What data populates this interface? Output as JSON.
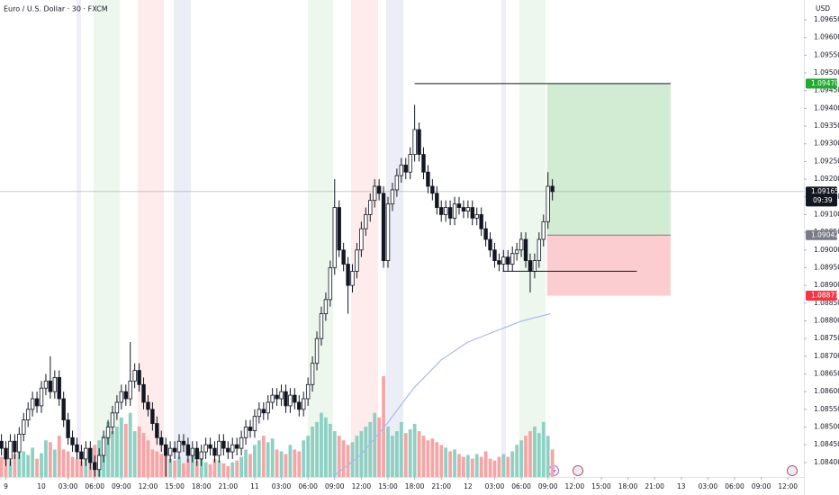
{
  "chart_data": {
    "type": "candlestick",
    "title": "Euro / U.S. Dollar · 30 · FXCM",
    "currency": "USD",
    "up_color": "#ffffff",
    "down_color": "#131722",
    "volume_up_color": "#8fd0c4",
    "volume_down_color": "#f5a5a6",
    "ma_color": "#a9b8f5",
    "xlim": [
      -4.66,
      85.8
    ],
    "ylim": [
      1.08359,
      1.09706
    ],
    "yticks": [
      {
        "value": 1.084,
        "label": "1.08400"
      },
      {
        "value": 1.0845,
        "label": "1.08450"
      },
      {
        "value": 1.085,
        "label": "1.08500"
      },
      {
        "value": 1.0855,
        "label": "1.08550"
      },
      {
        "value": 1.086,
        "label": "1.08600"
      },
      {
        "value": 1.0865,
        "label": "1.08650"
      },
      {
        "value": 1.087,
        "label": "1.08700"
      },
      {
        "value": 1.0875,
        "label": "1.08750"
      },
      {
        "value": 1.088,
        "label": "1.08800"
      },
      {
        "value": 1.0885,
        "label": "1.08850"
      },
      {
        "value": 1.089,
        "label": "1.08900"
      },
      {
        "value": 1.0895,
        "label": "1.08950"
      },
      {
        "value": 1.09,
        "label": "1.09000"
      },
      {
        "value": 1.0905,
        "label": "1.09050"
      },
      {
        "value": 1.091,
        "label": "1.09100"
      },
      {
        "value": 1.0915,
        "label": "1.09150"
      },
      {
        "value": 1.092,
        "label": "1.09200"
      },
      {
        "value": 1.0925,
        "label": "1.09250"
      },
      {
        "value": 1.093,
        "label": "1.09300"
      },
      {
        "value": 1.0935,
        "label": "1.09350"
      },
      {
        "value": 1.094,
        "label": "1.09400"
      },
      {
        "value": 1.0945,
        "label": "1.09450"
      },
      {
        "value": 1.095,
        "label": "1.09500"
      },
      {
        "value": 1.0955,
        "label": "1.09550"
      },
      {
        "value": 1.096,
        "label": "1.09600"
      },
      {
        "value": 1.0965,
        "label": "1.09650"
      }
    ],
    "xticks": [
      {
        "value": -4,
        "label": "9"
      },
      {
        "value": 0,
        "label": "10"
      },
      {
        "value": 3,
        "label": "03:00"
      },
      {
        "value": 6,
        "label": "06:00"
      },
      {
        "value": 9,
        "label": "09:00"
      },
      {
        "value": 12,
        "label": "12:00"
      },
      {
        "value": 15,
        "label": "15:00"
      },
      {
        "value": 18,
        "label": "18:00"
      },
      {
        "value": 21,
        "label": "21:00"
      },
      {
        "value": 24,
        "label": "11"
      },
      {
        "value": 27,
        "label": "03:00"
      },
      {
        "value": 30,
        "label": "06:00"
      },
      {
        "value": 33,
        "label": "09:00"
      },
      {
        "value": 36,
        "label": "12:00"
      },
      {
        "value": 39,
        "label": "15:00"
      },
      {
        "value": 42,
        "label": "18:00"
      },
      {
        "value": 45,
        "label": "21:00"
      },
      {
        "value": 48,
        "label": "12"
      },
      {
        "value": 51,
        "label": "03:00"
      },
      {
        "value": 54,
        "label": "06:00"
      },
      {
        "value": 57,
        "label": "09:00"
      },
      {
        "value": 60,
        "label": "12:00"
      },
      {
        "value": 63,
        "label": "15:00"
      },
      {
        "value": 66,
        "label": "18:00"
      },
      {
        "value": 69,
        "label": "21:00"
      },
      {
        "value": 72,
        "label": "13"
      },
      {
        "value": 75,
        "label": "03:00"
      },
      {
        "value": 78,
        "label": "06:00"
      },
      {
        "value": 81,
        "label": "09:00"
      },
      {
        "value": 84,
        "label": "12:00"
      }
    ],
    "x": [
      -4.5,
      -4,
      -3.5,
      -3,
      -2.5,
      -2,
      -1.5,
      -1,
      -0.5,
      0,
      0.5,
      1,
      1.5,
      2,
      2.5,
      3,
      3.5,
      4,
      4.5,
      5,
      5.5,
      6,
      6.5,
      7,
      7.5,
      8,
      8.5,
      9,
      9.5,
      10,
      10.5,
      11,
      11.5,
      12,
      12.5,
      13,
      13.5,
      14,
      14.5,
      15,
      15.5,
      16,
      16.5,
      17,
      17.5,
      18,
      18.5,
      19,
      19.5,
      20,
      20.5,
      21,
      21.5,
      22,
      22.5,
      23,
      23.5,
      24,
      24.5,
      25,
      25.5,
      26,
      26.5,
      27,
      27.5,
      28,
      28.5,
      29,
      29.5,
      30,
      30.5,
      31,
      31.5,
      32,
      32.5,
      33,
      33.5,
      34,
      34.5,
      35,
      35.5,
      36,
      36.5,
      37,
      37.5,
      38,
      38.5,
      39,
      39.5,
      40,
      40.5,
      41,
      41.5,
      42,
      42.5,
      43,
      43.5,
      44,
      44.5,
      45,
      45.5,
      46,
      46.5,
      47,
      47.5,
      48,
      48.5,
      49,
      49.5,
      50,
      50.5,
      51,
      51.5,
      52,
      52.5,
      53,
      53.5,
      54,
      54.5,
      55,
      55.5,
      56,
      56.5,
      57,
      57.5
    ],
    "ohlc": [
      [
        1.0846,
        1.0848,
        1.0842,
        1.0844
      ],
      [
        1.0844,
        1.0846,
        1.0839,
        1.0841
      ],
      [
        1.0841,
        1.0848,
        1.0839,
        1.0846
      ],
      [
        1.0846,
        1.0848,
        1.0841,
        1.0843
      ],
      [
        1.0843,
        1.085,
        1.0841,
        1.0848
      ],
      [
        1.0848,
        1.0854,
        1.0846,
        1.0852
      ],
      [
        1.0852,
        1.0857,
        1.085,
        1.0855
      ],
      [
        1.0855,
        1.086,
        1.0853,
        1.0858
      ],
      [
        1.0858,
        1.086,
        1.0854,
        1.0856
      ],
      [
        1.0856,
        1.0863,
        1.0854,
        1.0861
      ],
      [
        1.0861,
        1.0865,
        1.0859,
        1.0863
      ],
      [
        1.0863,
        1.087,
        1.0858,
        1.086
      ],
      [
        1.086,
        1.0866,
        1.0858,
        1.0864
      ],
      [
        1.0864,
        1.0866,
        1.0856,
        1.0858
      ],
      [
        1.0858,
        1.086,
        1.085,
        1.0852
      ],
      [
        1.0852,
        1.0854,
        1.0845,
        1.0847
      ],
      [
        1.0847,
        1.0849,
        1.0843,
        1.0845
      ],
      [
        1.0845,
        1.0847,
        1.0841,
        1.0843
      ],
      [
        1.0843,
        1.0845,
        1.0839,
        1.0841
      ],
      [
        1.0841,
        1.0846,
        1.0839,
        1.0844
      ],
      [
        1.0844,
        1.0846,
        1.0838,
        1.084
      ],
      [
        1.084,
        1.0842,
        1.0836,
        1.0838
      ],
      [
        1.0838,
        1.0844,
        1.0836,
        1.0842
      ],
      [
        1.0842,
        1.0849,
        1.084,
        1.0847
      ],
      [
        1.0847,
        1.0852,
        1.0845,
        1.085
      ],
      [
        1.085,
        1.0856,
        1.0848,
        1.0854
      ],
      [
        1.0854,
        1.0859,
        1.0852,
        1.0857
      ],
      [
        1.0857,
        1.0862,
        1.0855,
        1.086
      ],
      [
        1.086,
        1.0862,
        1.0856,
        1.0858
      ],
      [
        1.0858,
        1.0874,
        1.0856,
        1.0863
      ],
      [
        1.0863,
        1.0868,
        1.0861,
        1.0866
      ],
      [
        1.0866,
        1.0868,
        1.086,
        1.0862
      ],
      [
        1.0862,
        1.0864,
        1.0855,
        1.0857
      ],
      [
        1.0857,
        1.0859,
        1.0853,
        1.0855
      ],
      [
        1.0855,
        1.0857,
        1.0849,
        1.0851
      ],
      [
        1.0851,
        1.0853,
        1.0845,
        1.0847
      ],
      [
        1.0847,
        1.0849,
        1.0843,
        1.0845
      ],
      [
        1.0845,
        1.0847,
        1.0836,
        1.0842
      ],
      [
        1.0842,
        1.0846,
        1.084,
        1.0844
      ],
      [
        1.0844,
        1.0846,
        1.0841,
        1.0843
      ],
      [
        1.0843,
        1.0848,
        1.0841,
        1.0846
      ],
      [
        1.0846,
        1.0848,
        1.0843,
        1.0845
      ],
      [
        1.0845,
        1.0847,
        1.084,
        1.0842
      ],
      [
        1.0842,
        1.0846,
        1.084,
        1.0844
      ],
      [
        1.0844,
        1.0846,
        1.0839,
        1.0841
      ],
      [
        1.0841,
        1.0845,
        1.0839,
        1.0843
      ],
      [
        1.0843,
        1.0847,
        1.0841,
        1.0845
      ],
      [
        1.0845,
        1.0847,
        1.0842,
        1.0844
      ],
      [
        1.0844,
        1.0846,
        1.084,
        1.0842
      ],
      [
        1.0842,
        1.0848,
        1.084,
        1.0846
      ],
      [
        1.0846,
        1.0848,
        1.0842,
        1.0844
      ],
      [
        1.0844,
        1.0846,
        1.0841,
        1.0843
      ],
      [
        1.0843,
        1.0847,
        1.0841,
        1.0845
      ],
      [
        1.0845,
        1.0847,
        1.0842,
        1.0844
      ],
      [
        1.0844,
        1.0849,
        1.0842,
        1.0847
      ],
      [
        1.0847,
        1.0852,
        1.0845,
        1.085
      ],
      [
        1.085,
        1.0852,
        1.0847,
        1.0849
      ],
      [
        1.0849,
        1.0855,
        1.0847,
        1.0853
      ],
      [
        1.0853,
        1.0857,
        1.0851,
        1.0855
      ],
      [
        1.0855,
        1.0857,
        1.0852,
        1.0854
      ],
      [
        1.0854,
        1.0859,
        1.0852,
        1.0857
      ],
      [
        1.0857,
        1.0861,
        1.0855,
        1.0859
      ],
      [
        1.0859,
        1.0861,
        1.0856,
        1.0858
      ],
      [
        1.0858,
        1.0862,
        1.0856,
        1.086
      ],
      [
        1.086,
        1.0862,
        1.0854,
        1.0856
      ],
      [
        1.0856,
        1.0861,
        1.0854,
        1.0859
      ],
      [
        1.0859,
        1.0861,
        1.0855,
        1.0857
      ],
      [
        1.0857,
        1.0859,
        1.0853,
        1.0855
      ],
      [
        1.0855,
        1.086,
        1.0853,
        1.0858
      ],
      [
        1.0858,
        1.0864,
        1.0856,
        1.0862
      ],
      [
        1.0862,
        1.087,
        1.086,
        1.0868
      ],
      [
        1.0868,
        1.0877,
        1.0866,
        1.0875
      ],
      [
        1.0875,
        1.0884,
        1.0873,
        1.0882
      ],
      [
        1.0882,
        1.0888,
        1.088,
        1.0886
      ],
      [
        1.0886,
        1.0897,
        1.0884,
        1.0895
      ],
      [
        1.0895,
        1.092,
        1.0893,
        1.0912
      ],
      [
        1.0912,
        1.0914,
        1.0898,
        1.09
      ],
      [
        1.09,
        1.0902,
        1.0894,
        1.0896
      ],
      [
        1.0896,
        1.0898,
        1.0882,
        1.089
      ],
      [
        1.089,
        1.0896,
        1.0888,
        1.0894
      ],
      [
        1.0894,
        1.0902,
        1.0892,
        1.09
      ],
      [
        1.09,
        1.0908,
        1.0898,
        1.0906
      ],
      [
        1.0906,
        1.0912,
        1.0904,
        1.091
      ],
      [
        1.091,
        1.0916,
        1.0908,
        1.0914
      ],
      [
        1.0914,
        1.092,
        1.0912,
        1.0918
      ],
      [
        1.0918,
        1.092,
        1.0914,
        1.0916
      ],
      [
        1.0916,
        1.0918,
        1.0895,
        1.0897
      ],
      [
        1.0897,
        1.0915,
        1.0895,
        1.0913
      ],
      [
        1.0913,
        1.0919,
        1.0911,
        1.0917
      ],
      [
        1.0917,
        1.0923,
        1.0915,
        1.0921
      ],
      [
        1.0921,
        1.0926,
        1.0919,
        1.0924
      ],
      [
        1.0924,
        1.0926,
        1.092,
        1.0922
      ],
      [
        1.0922,
        1.0929,
        1.092,
        1.0927
      ],
      [
        1.0927,
        1.0941,
        1.0925,
        1.0934
      ],
      [
        1.0934,
        1.0936,
        1.0925,
        1.0927
      ],
      [
        1.0927,
        1.0929,
        1.092,
        1.0922
      ],
      [
        1.0922,
        1.0924,
        1.0916,
        1.0918
      ],
      [
        1.0918,
        1.092,
        1.0914,
        1.0916
      ],
      [
        1.0916,
        1.0918,
        1.091,
        1.0912
      ],
      [
        1.0912,
        1.0914,
        1.0908,
        1.091
      ],
      [
        1.091,
        1.0914,
        1.0908,
        1.0912
      ],
      [
        1.0912,
        1.0914,
        1.0907,
        1.0909
      ],
      [
        1.0909,
        1.0915,
        1.0907,
        1.0913
      ],
      [
        1.0913,
        1.0915,
        1.091,
        1.0912
      ],
      [
        1.0912,
        1.0914,
        1.0909,
        1.0911
      ],
      [
        1.0911,
        1.0914,
        1.0909,
        1.0912
      ],
      [
        1.0912,
        1.0914,
        1.0907,
        1.0909
      ],
      [
        1.0909,
        1.0912,
        1.0907,
        1.091
      ],
      [
        1.091,
        1.0912,
        1.0904,
        1.0906
      ],
      [
        1.0906,
        1.0908,
        1.0901,
        1.0903
      ],
      [
        1.0903,
        1.0905,
        1.0898,
        1.09
      ],
      [
        1.09,
        1.0902,
        1.0895,
        1.0897
      ],
      [
        1.0897,
        1.0899,
        1.0894,
        1.0896
      ],
      [
        1.0896,
        1.09,
        1.0894,
        1.0898
      ],
      [
        1.0898,
        1.09,
        1.0894,
        1.0896
      ],
      [
        1.0896,
        1.0901,
        1.0894,
        1.0899
      ],
      [
        1.0899,
        1.0902,
        1.0897,
        1.09
      ],
      [
        1.09,
        1.0905,
        1.0898,
        1.0903
      ],
      [
        1.0903,
        1.0905,
        1.0895,
        1.0897
      ],
      [
        1.0897,
        1.0899,
        1.0888,
        1.0894
      ],
      [
        1.0894,
        1.0899,
        1.0892,
        1.0897
      ],
      [
        1.0897,
        1.0905,
        1.0895,
        1.0903
      ],
      [
        1.0903,
        1.091,
        1.0901,
        1.0908
      ],
      [
        1.0908,
        1.0922,
        1.0906,
        1.0918
      ],
      [
        1.0918,
        1.092,
        1.0914,
        1.09165
      ]
    ],
    "volume": [
      22,
      30,
      18,
      25,
      35,
      28,
      24,
      32,
      20,
      26,
      40,
      38,
      30,
      45,
      30,
      28,
      22,
      20,
      18,
      25,
      30,
      35,
      40,
      45,
      60,
      50,
      55,
      65,
      58,
      70,
      50,
      55,
      48,
      40,
      30,
      28,
      25,
      35,
      20,
      18,
      22,
      15,
      20,
      25,
      18,
      22,
      16,
      14,
      20,
      18,
      15,
      12,
      16,
      18,
      22,
      30,
      25,
      35,
      40,
      45,
      38,
      42,
      30,
      28,
      25,
      35,
      30,
      28,
      40,
      45,
      55,
      60,
      70,
      65,
      58,
      50,
      45,
      40,
      35,
      38,
      45,
      50,
      55,
      60,
      70,
      65,
      110,
      55,
      45,
      50,
      60,
      48,
      52,
      58,
      50,
      45,
      40,
      42,
      38,
      35,
      32,
      28,
      30,
      25,
      22,
      24,
      20,
      25,
      22,
      28,
      20,
      18,
      22,
      25,
      22,
      28,
      35,
      40,
      45,
      50,
      55,
      48,
      60,
      45,
      30
    ],
    "ma": {
      "x": [
        32.8,
        35.9,
        38.9,
        41.9,
        45,
        48,
        51,
        54.1,
        57.3
      ],
      "values": [
        1.0836,
        1.0842,
        1.0851,
        1.0861,
        1.0869,
        1.0874,
        1.0877,
        1.088,
        1.0882
      ]
    },
    "lines": [
      {
        "value": 1.0947,
        "x": [
          42,
          70.8
        ]
      },
      {
        "value": 1.0894,
        "x": [
          51.9,
          67
        ]
      }
    ],
    "position_x": [
      56.9,
      70.8
    ],
    "price_labels": [
      {
        "value": 1.0947,
        "label": "1.09470",
        "color": "#22ab2e"
      },
      {
        "value": 1.09165,
        "sub": "09:39",
        "color": "#131722"
      },
      {
        "value": 1.09042,
        "color": "#787b86"
      },
      {
        "value": 1.08871,
        "color": "#f23645"
      }
    ]
  }
}
